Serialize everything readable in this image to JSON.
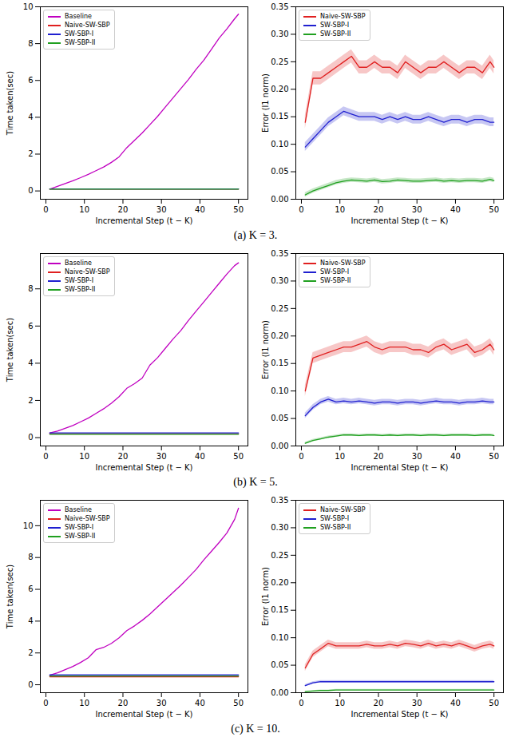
{
  "chart_data": [
    {
      "type": "line",
      "caption": "(a) K = 3.",
      "xlabel": "Incremental Step (t − K)",
      "ylabel": "Time taken(sec)",
      "x": [
        1,
        3,
        5,
        7,
        9,
        11,
        13,
        15,
        17,
        19,
        21,
        23,
        25,
        27,
        29,
        31,
        33,
        35,
        37,
        39,
        41,
        43,
        45,
        47,
        49,
        50
      ],
      "xlim": [
        -1.45,
        52.45
      ],
      "xticks": [
        0,
        10,
        20,
        30,
        40,
        50
      ],
      "ylim": [
        -0.45,
        10
      ],
      "yticks": [
        0,
        2,
        4,
        6,
        8,
        10
      ],
      "legend": "upper left",
      "series": [
        {
          "name": "Baseline",
          "color": "#c000c0",
          "values": [
            0.1,
            0.25,
            0.4,
            0.55,
            0.72,
            0.9,
            1.1,
            1.3,
            1.55,
            1.85,
            2.35,
            2.75,
            3.15,
            3.6,
            4.05,
            4.55,
            5.05,
            5.55,
            6.05,
            6.6,
            7.1,
            7.7,
            8.3,
            8.8,
            9.35,
            9.6
          ]
        },
        {
          "name": "Naive-SW-SBP",
          "color": "#e02020",
          "values": [
            0.1,
            0.1,
            0.1,
            0.1,
            0.1,
            0.1,
            0.1,
            0.1,
            0.1,
            0.1,
            0.1,
            0.1,
            0.1,
            0.1,
            0.1,
            0.1,
            0.1,
            0.1,
            0.1,
            0.1,
            0.1,
            0.1,
            0.1,
            0.1,
            0.1,
            0.1
          ]
        },
        {
          "name": "SW-SBP-I",
          "color": "#2020d0",
          "values": [
            0.11,
            0.11,
            0.11,
            0.11,
            0.11,
            0.11,
            0.11,
            0.11,
            0.11,
            0.11,
            0.11,
            0.11,
            0.11,
            0.11,
            0.11,
            0.11,
            0.11,
            0.11,
            0.11,
            0.11,
            0.11,
            0.11,
            0.11,
            0.11,
            0.11,
            0.11
          ]
        },
        {
          "name": "SW-SBP-II",
          "color": "#20a020",
          "values": [
            0.1,
            0.1,
            0.1,
            0.1,
            0.1,
            0.1,
            0.1,
            0.1,
            0.1,
            0.1,
            0.1,
            0.1,
            0.1,
            0.1,
            0.1,
            0.1,
            0.1,
            0.1,
            0.1,
            0.1,
            0.1,
            0.1,
            0.1,
            0.1,
            0.1,
            0.1
          ]
        }
      ]
    },
    {
      "type": "line",
      "xlabel": "Incremental Step (t − K)",
      "ylabel": "Error (l1 norm)",
      "x": [
        1,
        3,
        5,
        7,
        9,
        11,
        13,
        15,
        17,
        19,
        21,
        23,
        25,
        27,
        29,
        31,
        33,
        35,
        37,
        39,
        41,
        43,
        45,
        47,
        49,
        50
      ],
      "xlim": [
        -1.45,
        52.45
      ],
      "xticks": [
        0,
        10,
        20,
        30,
        40,
        50
      ],
      "ylim": [
        0,
        0.35
      ],
      "yticks": [
        {
          "value": 0,
          "label": "0.00"
        },
        {
          "value": 0.05,
          "label": "0.05"
        },
        {
          "value": 0.1,
          "label": "0.10"
        },
        {
          "value": 0.15,
          "label": "0.15"
        },
        {
          "value": 0.2,
          "label": "0.20"
        },
        {
          "value": 0.25,
          "label": "0.25"
        },
        {
          "value": 0.3,
          "label": "0.30"
        },
        {
          "value": 0.35,
          "label": "0.35"
        }
      ],
      "legend": "upper left",
      "series": [
        {
          "name": "Naive-SW-SBP",
          "color": "#e02020",
          "error": 0.012,
          "values": [
            0.14,
            0.22,
            0.22,
            0.23,
            0.24,
            0.25,
            0.26,
            0.24,
            0.24,
            0.25,
            0.24,
            0.24,
            0.23,
            0.25,
            0.24,
            0.23,
            0.24,
            0.24,
            0.25,
            0.24,
            0.23,
            0.24,
            0.24,
            0.23,
            0.25,
            0.24
          ]
        },
        {
          "name": "SW-SBP-I",
          "color": "#2020d0",
          "error": 0.008,
          "values": [
            0.095,
            0.11,
            0.125,
            0.14,
            0.15,
            0.16,
            0.155,
            0.15,
            0.15,
            0.15,
            0.145,
            0.15,
            0.145,
            0.15,
            0.145,
            0.145,
            0.15,
            0.145,
            0.14,
            0.145,
            0.145,
            0.14,
            0.145,
            0.145,
            0.14,
            0.14
          ]
        },
        {
          "name": "SW-SBP-II",
          "color": "#20a020",
          "error": 0.004,
          "values": [
            0.008,
            0.015,
            0.02,
            0.025,
            0.03,
            0.033,
            0.035,
            0.034,
            0.033,
            0.035,
            0.032,
            0.033,
            0.035,
            0.034,
            0.033,
            0.033,
            0.034,
            0.035,
            0.033,
            0.034,
            0.033,
            0.034,
            0.034,
            0.033,
            0.036,
            0.034
          ]
        }
      ]
    },
    {
      "type": "line",
      "caption": "(b) K = 5.",
      "xlabel": "Incremental Step (t − K)",
      "ylabel": "Time taken(sec)",
      "x": [
        1,
        3,
        5,
        7,
        9,
        11,
        13,
        15,
        17,
        19,
        21,
        23,
        25,
        27,
        29,
        31,
        33,
        35,
        37,
        39,
        41,
        43,
        45,
        47,
        49,
        50
      ],
      "xlim": [
        -1.45,
        52.45
      ],
      "xticks": [
        0,
        10,
        20,
        30,
        40,
        50
      ],
      "ylim": [
        -0.45,
        9.9
      ],
      "yticks": [
        0,
        2,
        4,
        6,
        8
      ],
      "legend": "upper left",
      "series": [
        {
          "name": "Baseline",
          "color": "#c000c0",
          "values": [
            0.25,
            0.35,
            0.5,
            0.65,
            0.85,
            1.05,
            1.3,
            1.55,
            1.85,
            2.2,
            2.65,
            2.9,
            3.2,
            3.9,
            4.3,
            4.8,
            5.3,
            5.75,
            6.3,
            6.8,
            7.3,
            7.8,
            8.3,
            8.8,
            9.25,
            9.4
          ]
        },
        {
          "name": "Naive-SW-SBP",
          "color": "#e02020",
          "values": [
            0.2,
            0.2,
            0.2,
            0.2,
            0.2,
            0.2,
            0.2,
            0.2,
            0.2,
            0.2,
            0.2,
            0.2,
            0.2,
            0.2,
            0.2,
            0.2,
            0.2,
            0.2,
            0.2,
            0.2,
            0.2,
            0.2,
            0.2,
            0.2,
            0.2,
            0.2
          ]
        },
        {
          "name": "SW-SBP-I",
          "color": "#2020d0",
          "values": [
            0.25,
            0.25,
            0.25,
            0.25,
            0.25,
            0.25,
            0.25,
            0.25,
            0.25,
            0.25,
            0.25,
            0.25,
            0.25,
            0.25,
            0.25,
            0.25,
            0.25,
            0.25,
            0.25,
            0.25,
            0.25,
            0.25,
            0.25,
            0.25,
            0.25,
            0.25
          ]
        },
        {
          "name": "SW-SBP-II",
          "color": "#20a020",
          "values": [
            0.18,
            0.18,
            0.18,
            0.18,
            0.18,
            0.18,
            0.18,
            0.18,
            0.18,
            0.18,
            0.18,
            0.18,
            0.18,
            0.18,
            0.18,
            0.18,
            0.18,
            0.18,
            0.18,
            0.18,
            0.18,
            0.18,
            0.18,
            0.18,
            0.18,
            0.18
          ]
        }
      ]
    },
    {
      "type": "line",
      "xlabel": "Incremental Step (t − K)",
      "ylabel": "Error (l1 norm)",
      "x": [
        1,
        3,
        5,
        7,
        9,
        11,
        13,
        15,
        17,
        19,
        21,
        23,
        25,
        27,
        29,
        31,
        33,
        35,
        37,
        39,
        41,
        43,
        45,
        47,
        49,
        50
      ],
      "xlim": [
        -1.45,
        52.45
      ],
      "xticks": [
        0,
        10,
        20,
        30,
        40,
        50
      ],
      "ylim": [
        0,
        0.35
      ],
      "yticks": [
        {
          "value": 0,
          "label": "0.00"
        },
        {
          "value": 0.05,
          "label": "0.05"
        },
        {
          "value": 0.1,
          "label": "0.10"
        },
        {
          "value": 0.15,
          "label": "0.15"
        },
        {
          "value": 0.2,
          "label": "0.20"
        },
        {
          "value": 0.25,
          "label": "0.25"
        },
        {
          "value": 0.3,
          "label": "0.30"
        },
        {
          "value": 0.35,
          "label": "0.35"
        }
      ],
      "legend": "upper left",
      "series": [
        {
          "name": "Naive-SW-SBP",
          "color": "#e02020",
          "error": 0.01,
          "values": [
            0.1,
            0.16,
            0.165,
            0.17,
            0.175,
            0.18,
            0.18,
            0.185,
            0.19,
            0.18,
            0.175,
            0.18,
            0.18,
            0.18,
            0.175,
            0.175,
            0.17,
            0.18,
            0.185,
            0.175,
            0.18,
            0.185,
            0.17,
            0.175,
            0.185,
            0.175
          ]
        },
        {
          "name": "SW-SBP-I",
          "color": "#2020d0",
          "error": 0.005,
          "values": [
            0.055,
            0.07,
            0.08,
            0.085,
            0.08,
            0.082,
            0.08,
            0.082,
            0.08,
            0.078,
            0.08,
            0.08,
            0.078,
            0.08,
            0.08,
            0.078,
            0.08,
            0.082,
            0.08,
            0.08,
            0.078,
            0.08,
            0.08,
            0.082,
            0.08,
            0.08
          ]
        },
        {
          "name": "SW-SBP-II",
          "color": "#20a020",
          "error": 0.002,
          "values": [
            0.005,
            0.01,
            0.013,
            0.016,
            0.018,
            0.02,
            0.02,
            0.019,
            0.02,
            0.02,
            0.019,
            0.02,
            0.019,
            0.02,
            0.02,
            0.019,
            0.02,
            0.02,
            0.019,
            0.02,
            0.02,
            0.02,
            0.019,
            0.02,
            0.02,
            0.019
          ]
        }
      ]
    },
    {
      "type": "line",
      "caption": "(c) K = 10.",
      "xlabel": "Incremental Step (t − K)",
      "ylabel": "Time taken(sec)",
      "x": [
        1,
        3,
        5,
        7,
        9,
        11,
        13,
        15,
        17,
        19,
        21,
        23,
        25,
        27,
        29,
        31,
        33,
        35,
        37,
        39,
        41,
        43,
        45,
        47,
        49,
        50
      ],
      "xlim": [
        -1.45,
        52.45
      ],
      "xticks": [
        0,
        10,
        20,
        30,
        40,
        50
      ],
      "ylim": [
        -0.5,
        11.6
      ],
      "yticks": [
        0,
        2,
        4,
        6,
        8,
        10
      ],
      "legend": "upper left",
      "series": [
        {
          "name": "Baseline",
          "color": "#c000c0",
          "values": [
            0.6,
            0.75,
            0.95,
            1.15,
            1.4,
            1.7,
            2.2,
            2.35,
            2.6,
            2.95,
            3.4,
            3.7,
            4.05,
            4.45,
            4.9,
            5.35,
            5.8,
            6.25,
            6.75,
            7.25,
            7.85,
            8.4,
            8.95,
            9.55,
            10.4,
            11.1
          ]
        },
        {
          "name": "Naive-SW-SBP",
          "color": "#e02020",
          "values": [
            0.5,
            0.5,
            0.5,
            0.5,
            0.5,
            0.5,
            0.5,
            0.5,
            0.5,
            0.5,
            0.5,
            0.5,
            0.5,
            0.5,
            0.5,
            0.5,
            0.5,
            0.5,
            0.5,
            0.5,
            0.5,
            0.5,
            0.5,
            0.5,
            0.5,
            0.5
          ]
        },
        {
          "name": "SW-SBP-I",
          "color": "#2020d0",
          "values": [
            0.62,
            0.62,
            0.62,
            0.62,
            0.62,
            0.62,
            0.62,
            0.62,
            0.62,
            0.62,
            0.62,
            0.62,
            0.62,
            0.62,
            0.62,
            0.62,
            0.62,
            0.62,
            0.62,
            0.62,
            0.62,
            0.62,
            0.62,
            0.62,
            0.62,
            0.62
          ]
        },
        {
          "name": "SW-SBP-II",
          "color": "#20a020",
          "values": [
            0.55,
            0.55,
            0.55,
            0.55,
            0.55,
            0.55,
            0.55,
            0.55,
            0.55,
            0.55,
            0.55,
            0.55,
            0.55,
            0.55,
            0.55,
            0.55,
            0.55,
            0.55,
            0.55,
            0.55,
            0.55,
            0.55,
            0.55,
            0.55,
            0.55,
            0.55
          ]
        }
      ]
    },
    {
      "type": "line",
      "xlabel": "Incremental Step (t − K)",
      "ylabel": "Error (l1 norm)",
      "x": [
        1,
        3,
        5,
        7,
        9,
        11,
        13,
        15,
        17,
        19,
        21,
        23,
        25,
        27,
        29,
        31,
        33,
        35,
        37,
        39,
        41,
        43,
        45,
        47,
        49,
        50
      ],
      "xlim": [
        -1.45,
        52.45
      ],
      "xticks": [
        0,
        10,
        20,
        30,
        40,
        50
      ],
      "ylim": [
        0,
        0.35
      ],
      "yticks": [
        {
          "value": 0,
          "label": "0.00"
        },
        {
          "value": 0.05,
          "label": "0.05"
        },
        {
          "value": 0.1,
          "label": "0.10"
        },
        {
          "value": 0.15,
          "label": "0.15"
        },
        {
          "value": 0.2,
          "label": "0.20"
        },
        {
          "value": 0.25,
          "label": "0.25"
        },
        {
          "value": 0.3,
          "label": "0.30"
        },
        {
          "value": 0.35,
          "label": "0.35"
        }
      ],
      "legend": "upper left",
      "series": [
        {
          "name": "Naive-SW-SBP",
          "color": "#e02020",
          "error": 0.006,
          "values": [
            0.045,
            0.07,
            0.08,
            0.09,
            0.085,
            0.085,
            0.085,
            0.085,
            0.088,
            0.085,
            0.085,
            0.088,
            0.085,
            0.09,
            0.088,
            0.085,
            0.09,
            0.085,
            0.088,
            0.085,
            0.09,
            0.085,
            0.08,
            0.085,
            0.088,
            0.085
          ]
        },
        {
          "name": "SW-SBP-I",
          "color": "#2020d0",
          "error": 0.002,
          "values": [
            0.013,
            0.018,
            0.02,
            0.02,
            0.02,
            0.02,
            0.02,
            0.02,
            0.02,
            0.02,
            0.02,
            0.02,
            0.02,
            0.02,
            0.02,
            0.02,
            0.02,
            0.02,
            0.02,
            0.02,
            0.02,
            0.02,
            0.02,
            0.02,
            0.02,
            0.02
          ]
        },
        {
          "name": "SW-SBP-II",
          "color": "#20a020",
          "error": 0.001,
          "values": [
            0.002,
            0.003,
            0.004,
            0.004,
            0.005,
            0.005,
            0.005,
            0.005,
            0.005,
            0.005,
            0.005,
            0.005,
            0.005,
            0.005,
            0.005,
            0.005,
            0.005,
            0.005,
            0.005,
            0.005,
            0.005,
            0.005,
            0.005,
            0.005,
            0.005,
            0.005
          ]
        }
      ]
    }
  ]
}
